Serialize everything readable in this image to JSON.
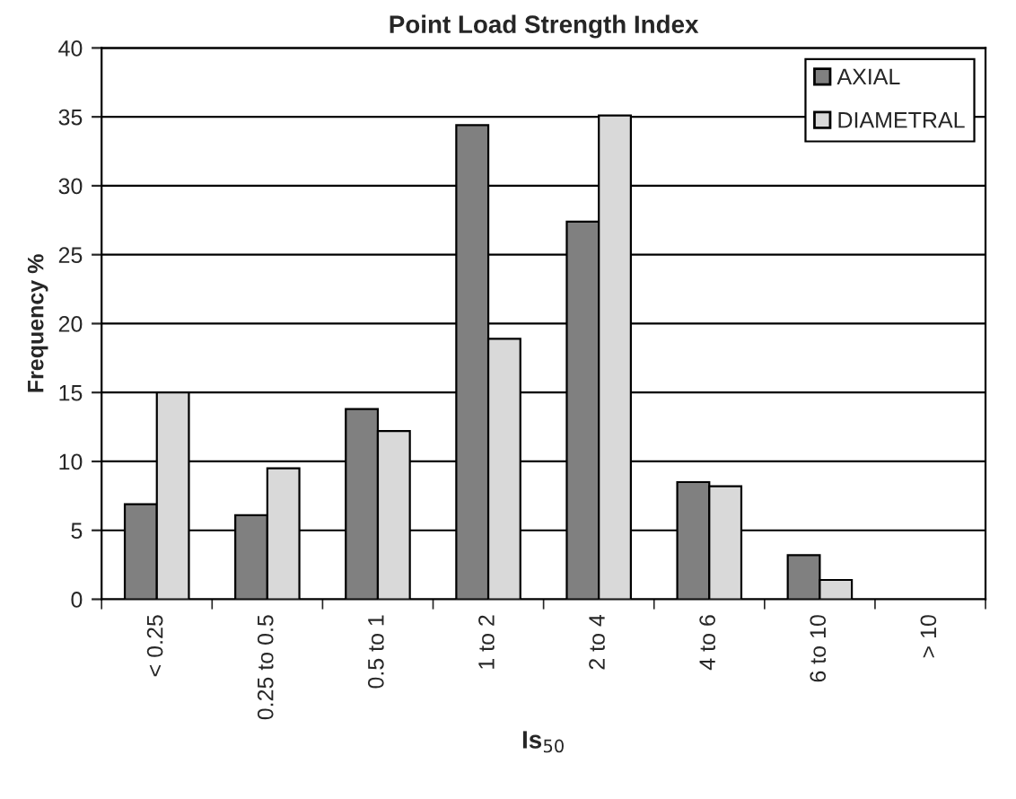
{
  "chart_data": {
    "type": "bar",
    "title": "Point Load Strength Index",
    "xlabel": "Is$_{50}$",
    "ylabel": "Frequency %",
    "categories": [
      "< 0.25",
      "0.25 to 0.5",
      "0.5 to 1",
      "1 to 2",
      "2 to 4",
      "4 to 6",
      "6 to 10",
      "> 10"
    ],
    "series": [
      {
        "name": "AXIAL",
        "color": "#808080",
        "values": [
          6.9,
          6.1,
          13.8,
          34.4,
          27.4,
          8.5,
          3.2,
          0
        ]
      },
      {
        "name": "DIAMETRAL",
        "color": "#d9d9d9",
        "values": [
          15,
          9.5,
          12.2,
          18.9,
          35.1,
          8.2,
          1.4,
          0
        ]
      }
    ],
    "ylim": [
      0,
      40
    ],
    "yticks": [
      0,
      5,
      10,
      15,
      20,
      25,
      30,
      35,
      40
    ],
    "grid": "y",
    "legend": "top right"
  }
}
